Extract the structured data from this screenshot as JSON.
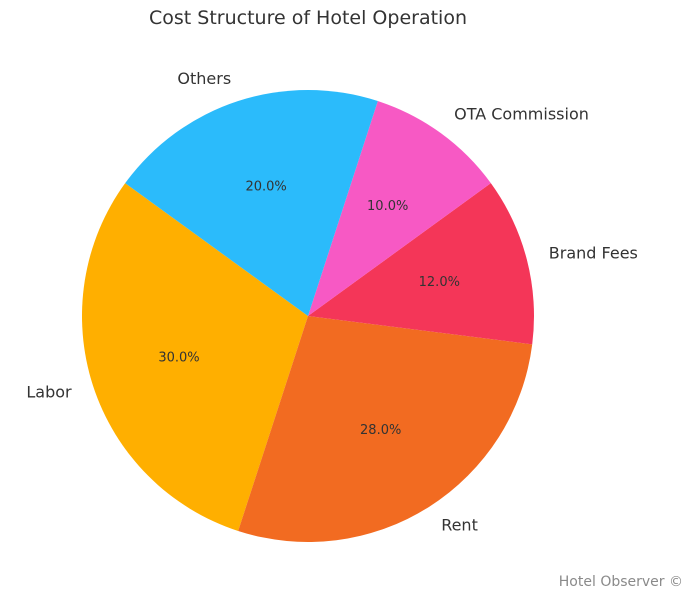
{
  "chart_data": {
    "type": "pie",
    "title": "Cost Structure of Hotel Operation",
    "slices": [
      {
        "label": "Labor",
        "value": 30.0,
        "pct_label": "30.0%",
        "color": "#FFAF00"
      },
      {
        "label": "Rent",
        "value": 28.0,
        "pct_label": "28.0%",
        "color": "#F26B21"
      },
      {
        "label": "Brand Fees",
        "value": 12.0,
        "pct_label": "12.0%",
        "color": "#F43658"
      },
      {
        "label": "OTA Commission",
        "value": 10.0,
        "pct_label": "10.0%",
        "color": "#F759C4"
      },
      {
        "label": "Others",
        "value": 20.0,
        "pct_label": "20.0%",
        "color": "#2BBBFB"
      }
    ],
    "start_angle_deg": 144,
    "direction": "counterclockwise",
    "legend": "none"
  },
  "watermark": "Hotel Observer ©"
}
